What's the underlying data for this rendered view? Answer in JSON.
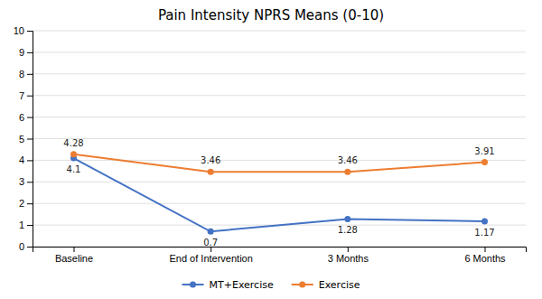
{
  "chart_data": {
    "type": "line",
    "title": "Pain Intensity NPRS Means (0-10)",
    "categories": [
      "Baseline",
      "End of Intervention",
      "3 Months",
      "6 Months"
    ],
    "series": [
      {
        "name": "MT+Exercise",
        "color": "#4472C4",
        "values": [
          4.1,
          0.7,
          1.28,
          1.17
        ]
      },
      {
        "name": "Exercise",
        "color": "#ED7D31",
        "values": [
          4.28,
          3.46,
          3.46,
          3.91
        ]
      }
    ],
    "ylim": [
      0,
      10
    ],
    "yticks": [
      0,
      1,
      2,
      3,
      4,
      5,
      6,
      7,
      8,
      9,
      10
    ],
    "grid": true,
    "legend": "bottom",
    "data_labels": true,
    "marker": "circle"
  }
}
